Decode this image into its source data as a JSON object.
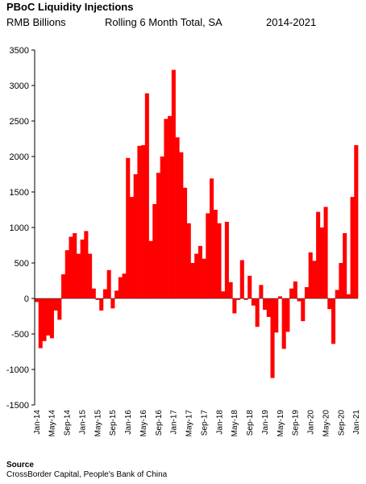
{
  "header": {
    "title": "PBoC Liquidity Injections",
    "unit": "RMB Billions",
    "description": "Rolling 6 Month Total, SA",
    "period": "2014-2021"
  },
  "footer": {
    "source_label": "Source",
    "source_text": "CrossBorder Capital, People's Bank of China"
  },
  "colors": {
    "bar": "#ff0000",
    "axis": "#000000"
  },
  "chart_data": {
    "type": "bar",
    "title": "PBoC Liquidity Injections",
    "ylabel": "RMB Billions",
    "ylim": [
      -1500,
      3500
    ],
    "yticks": [
      3500,
      3000,
      2500,
      2000,
      1500,
      1000,
      500,
      0,
      -500,
      -1000,
      -1500
    ],
    "xticks": [
      "Jan-14",
      "May-14",
      "Sep-14",
      "Jan-15",
      "May-15",
      "Sep-15",
      "Jan-16",
      "May-16",
      "Sep-16",
      "Jan-17",
      "May-17",
      "Sep-17",
      "Jan-18",
      "May-18",
      "Sep-18",
      "Jan-19",
      "May-19",
      "Sep-19",
      "Jan-20",
      "May-20",
      "Sep-20",
      "Jan-21"
    ],
    "first_month": "Jan-14",
    "last_month": "Jan-21",
    "values": [
      -50,
      -700,
      -600,
      -520,
      -560,
      -170,
      -300,
      340,
      680,
      870,
      920,
      630,
      830,
      950,
      630,
      140,
      -20,
      -170,
      130,
      400,
      -140,
      110,
      300,
      350,
      1980,
      1430,
      1750,
      2150,
      2160,
      2890,
      810,
      1330,
      1770,
      2000,
      2530,
      2570,
      3220,
      2270,
      2060,
      1560,
      1060,
      500,
      630,
      740,
      560,
      1200,
      1690,
      1250,
      1060,
      100,
      1080,
      230,
      -210,
      -20,
      540,
      -20,
      320,
      -100,
      -400,
      190,
      -160,
      -260,
      -1120,
      -480,
      30,
      -710,
      -470,
      140,
      240,
      -40,
      -320,
      160,
      650,
      530,
      1220,
      1000,
      1290,
      -150,
      -640,
      120,
      500,
      920,
      60,
      1430,
      2160
    ]
  }
}
